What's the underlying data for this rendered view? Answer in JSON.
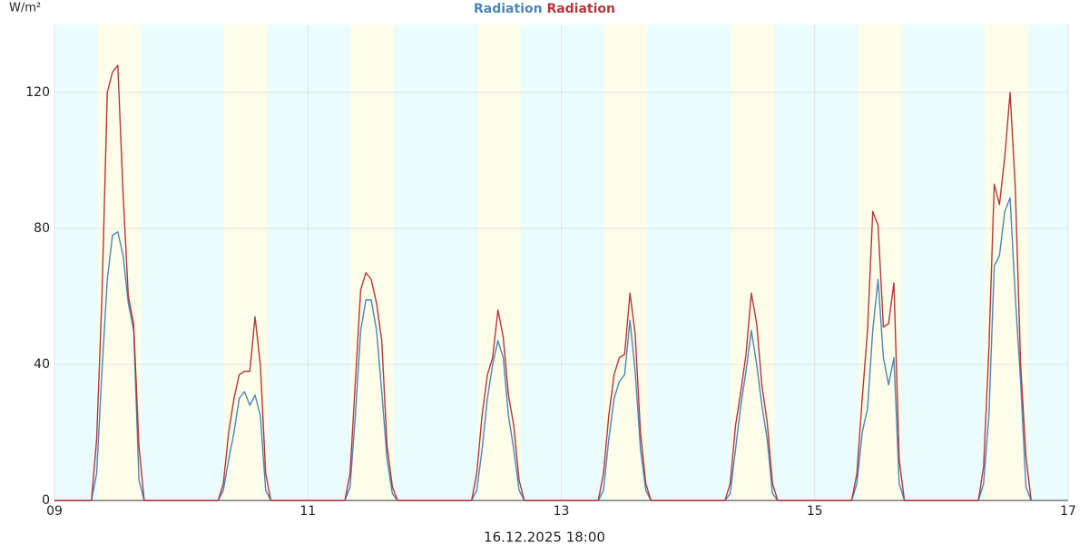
{
  "chart_data": {
    "type": "line",
    "y_unit": "W/m²",
    "x_label": "16.12.2025 18:00",
    "xlim": [
      9,
      17
    ],
    "ylim": [
      0,
      140
    ],
    "xticks": [
      {
        "value": 9,
        "label": "09"
      },
      11,
      13,
      15,
      17
    ],
    "yticks": [
      0,
      40,
      80,
      120
    ],
    "grid": true,
    "daylight": [
      [
        9.34,
        9.68
      ],
      [
        10.34,
        10.68
      ],
      [
        11.34,
        11.68
      ],
      [
        12.34,
        12.68
      ],
      [
        13.34,
        13.68
      ],
      [
        14.34,
        14.68
      ],
      [
        15.34,
        15.68
      ],
      [
        16.34,
        16.68
      ]
    ],
    "x": [
      9,
      9.292,
      9.333,
      9.375,
      9.417,
      9.458,
      9.5,
      9.542,
      9.583,
      9.625,
      9.667,
      9.708,
      10.292,
      10.333,
      10.375,
      10.417,
      10.458,
      10.5,
      10.542,
      10.583,
      10.625,
      10.667,
      10.708,
      11.292,
      11.333,
      11.375,
      11.417,
      11.458,
      11.5,
      11.542,
      11.583,
      11.625,
      11.667,
      11.708,
      12.292,
      12.333,
      12.375,
      12.417,
      12.458,
      12.5,
      12.542,
      12.583,
      12.625,
      12.667,
      12.708,
      13.292,
      13.333,
      13.375,
      13.417,
      13.458,
      13.5,
      13.542,
      13.583,
      13.625,
      13.667,
      13.708,
      14.292,
      14.333,
      14.375,
      14.417,
      14.458,
      14.5,
      14.542,
      14.583,
      14.625,
      14.667,
      14.708,
      15.292,
      15.333,
      15.375,
      15.417,
      15.458,
      15.5,
      15.542,
      15.583,
      15.625,
      15.667,
      15.708,
      16.292,
      16.333,
      16.375,
      16.417,
      16.458,
      16.5,
      16.542,
      16.583,
      16.625,
      16.667,
      16.708
    ],
    "series": [
      {
        "name": "Radiation",
        "color": "#4a86b8",
        "values": [
          0,
          0,
          8,
          38,
          65,
          78,
          79,
          72,
          58,
          50,
          6,
          0,
          0,
          3,
          12,
          20,
          30,
          32,
          28,
          31,
          25,
          3,
          0,
          0,
          4,
          25,
          50,
          59,
          59,
          50,
          32,
          12,
          2,
          0,
          0,
          3,
          15,
          30,
          40,
          47,
          42,
          25,
          15,
          3,
          0,
          0,
          3,
          18,
          30,
          35,
          37,
          53,
          38,
          15,
          3,
          0,
          0,
          2,
          15,
          28,
          38,
          50,
          40,
          28,
          18,
          2,
          0,
          0,
          5,
          20,
          27,
          50,
          65,
          42,
          34,
          42,
          5,
          0,
          0,
          5,
          25,
          69,
          72,
          85,
          89,
          60,
          35,
          4,
          0
        ]
      },
      {
        "name": "Radiation",
        "color": "#b5373b",
        "values": [
          0,
          0,
          18,
          60,
          120,
          126,
          128,
          90,
          60,
          52,
          16,
          0,
          0,
          5,
          20,
          30,
          37,
          38,
          38,
          54,
          40,
          8,
          0,
          0,
          8,
          35,
          62,
          67,
          65,
          58,
          47,
          16,
          4,
          0,
          0,
          8,
          25,
          37,
          42,
          56,
          48,
          31,
          22,
          6,
          0,
          0,
          8,
          25,
          37,
          42,
          43,
          61,
          49,
          20,
          5,
          0,
          0,
          5,
          22,
          32,
          43,
          61,
          52,
          34,
          23,
          5,
          0,
          0,
          8,
          30,
          50,
          85,
          81,
          51,
          52,
          64,
          12,
          0,
          0,
          10,
          45,
          93,
          87,
          101,
          120,
          92,
          40,
          13,
          0
        ]
      }
    ]
  }
}
